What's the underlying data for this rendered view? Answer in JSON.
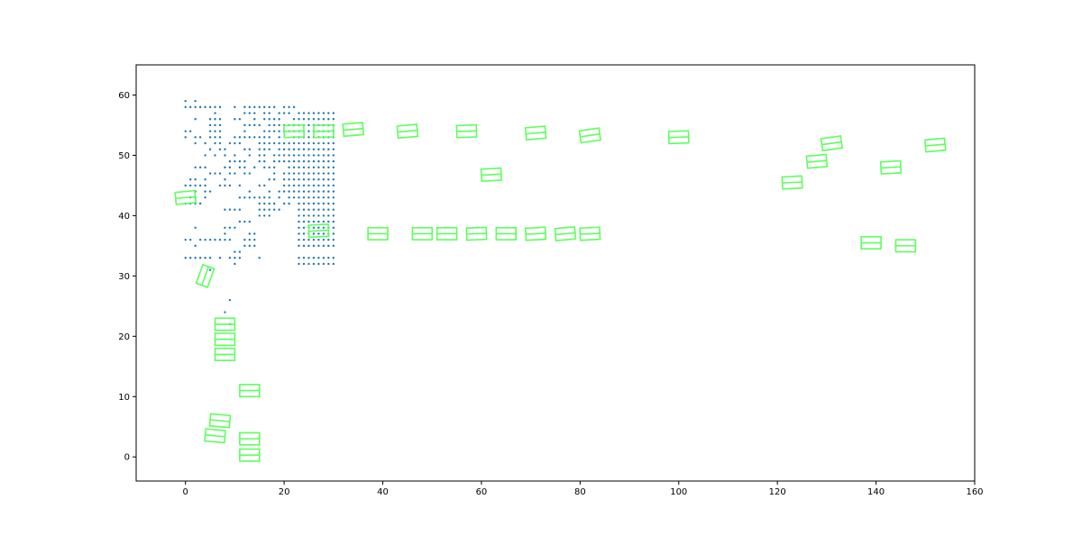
{
  "chart_data": {
    "type": "scatter",
    "title": "",
    "xlabel": "",
    "ylabel": "",
    "xlim": [
      -10,
      160
    ],
    "ylim": [
      -4,
      65
    ],
    "grid": false,
    "legend": "none",
    "x_ticks": [
      0,
      20,
      40,
      60,
      80,
      100,
      120,
      140,
      160
    ],
    "y_ticks": [
      0,
      10,
      20,
      30,
      40,
      50,
      60
    ],
    "colors": {
      "points": "#1f77b4",
      "boxes": "#5dff5d"
    },
    "series": [
      {
        "kind": "points",
        "x": [
          0,
          0,
          0,
          0,
          0,
          0,
          0,
          0,
          1,
          1,
          1,
          1,
          1,
          1,
          1,
          1,
          2,
          2,
          2,
          2,
          2,
          2,
          2,
          2,
          2,
          2,
          2,
          2,
          2,
          2,
          3,
          3,
          3,
          3,
          3,
          3,
          3,
          4,
          4,
          4,
          4,
          4,
          4,
          4,
          4,
          4,
          4,
          5,
          5,
          5,
          5,
          5,
          5,
          5,
          5,
          5,
          5,
          5,
          6,
          6,
          6,
          6,
          6,
          6,
          6,
          6,
          6,
          6,
          7,
          7,
          7,
          7,
          7,
          7,
          7,
          7,
          7,
          7,
          7,
          8,
          8,
          8,
          8,
          8,
          8,
          8,
          8,
          8,
          8,
          9,
          9,
          9,
          9,
          9,
          9,
          9,
          9,
          9,
          9,
          9,
          10,
          10,
          10,
          10,
          10,
          10,
          10,
          10,
          10,
          10,
          10,
          10,
          11,
          11,
          11,
          11,
          11,
          11,
          11,
          11,
          11,
          11,
          11,
          12,
          12,
          12,
          12,
          12,
          12,
          12,
          12,
          12,
          12,
          12,
          12,
          12,
          13,
          13,
          13,
          13,
          13,
          13,
          13,
          13,
          13,
          13,
          13,
          13,
          13,
          14,
          14,
          14,
          14,
          14,
          14,
          14,
          14,
          14,
          14,
          15,
          15,
          15,
          15,
          15,
          15,
          15,
          15,
          15,
          15,
          15,
          15,
          15,
          16,
          16,
          16,
          16,
          16,
          16,
          16,
          16,
          16,
          16,
          16,
          16,
          16,
          16,
          16,
          17,
          17,
          17,
          17,
          17,
          17,
          17,
          17,
          17,
          17,
          17,
          17,
          17,
          17,
          17,
          18,
          18,
          18,
          18,
          18,
          18,
          18,
          18,
          18,
          18,
          18,
          18,
          19,
          19,
          19,
          19,
          19,
          19,
          19,
          19,
          19,
          19,
          19,
          19,
          20,
          20,
          20,
          20,
          20,
          20,
          20,
          20,
          20,
          20,
          20,
          20,
          20,
          21,
          21,
          21,
          21,
          21,
          21,
          21,
          21,
          21,
          21,
          21,
          21,
          21,
          21,
          21,
          22,
          22,
          22,
          22,
          22,
          22,
          22,
          22,
          22,
          22,
          22,
          22,
          22,
          22,
          22,
          23,
          23,
          23,
          23,
          23,
          23,
          23,
          23,
          23,
          23,
          23,
          23,
          23,
          23,
          23,
          23,
          23,
          23,
          23,
          23,
          23,
          23,
          23,
          23,
          23,
          24,
          24,
          24,
          24,
          24,
          24,
          24,
          24,
          24,
          24,
          24,
          24,
          24,
          24,
          24,
          24,
          24,
          24,
          24,
          24,
          24,
          24,
          24,
          24,
          24,
          25,
          25,
          25,
          25,
          25,
          25,
          25,
          25,
          25,
          25,
          25,
          25,
          25,
          25,
          25,
          25,
          25,
          25,
          25,
          25,
          25,
          25,
          25,
          25,
          25,
          26,
          26,
          26,
          26,
          26,
          26,
          26,
          26,
          26,
          26,
          26,
          26,
          26,
          26,
          26,
          26,
          26,
          26,
          26,
          26,
          26,
          26,
          26,
          26,
          26,
          27,
          27,
          27,
          27,
          27,
          27,
          27,
          27,
          27,
          27,
          27,
          27,
          27,
          27,
          27,
          27,
          27,
          27,
          27,
          27,
          27,
          27,
          27,
          27,
          27,
          28,
          28,
          28,
          28,
          28,
          28,
          28,
          28,
          28,
          28,
          28,
          28,
          28,
          28,
          28,
          28,
          28,
          28,
          28,
          28,
          28,
          28,
          28,
          28,
          28,
          29,
          29,
          29,
          29,
          29,
          29,
          29,
          29,
          29,
          29,
          29,
          29,
          29,
          29,
          29,
          29,
          29,
          29,
          29,
          29,
          29,
          29,
          29,
          29,
          29,
          30,
          30,
          30,
          30,
          30,
          30,
          30,
          30,
          30,
          30,
          30,
          30,
          30,
          30,
          30,
          30,
          30,
          30,
          30,
          30,
          30,
          30,
          30,
          30,
          30
        ],
        "y": [
          58,
          59,
          54,
          53,
          45,
          42,
          36,
          33,
          58,
          54,
          46,
          45,
          43,
          42,
          36,
          33,
          59,
          58,
          56,
          53,
          52,
          48,
          46,
          45,
          44,
          43,
          42,
          38,
          35,
          33,
          58,
          53,
          48,
          45,
          42,
          36,
          33,
          58,
          52,
          50,
          48,
          46,
          45,
          44,
          43,
          36,
          33,
          58,
          56,
          55,
          54,
          53,
          51,
          47,
          44,
          36,
          33,
          31,
          58,
          57,
          56,
          55,
          54,
          53,
          52,
          50,
          47,
          36,
          58,
          56,
          55,
          54,
          53,
          52,
          51,
          47,
          45,
          36,
          33,
          51,
          50,
          48,
          46,
          45,
          41,
          38,
          37,
          36,
          24,
          52,
          49,
          48,
          47,
          45,
          41,
          38,
          36,
          33,
          26,
          22,
          58,
          56,
          53,
          52,
          50,
          49,
          47,
          41,
          38,
          34,
          33,
          32,
          56,
          53,
          52,
          49,
          48,
          45,
          43,
          41,
          39,
          34,
          33,
          58,
          57,
          55,
          54,
          53,
          51,
          49,
          48,
          47,
          43,
          39,
          36,
          35,
          58,
          57,
          55,
          53,
          51,
          50,
          47,
          44,
          43,
          39,
          37,
          36,
          35,
          58,
          57,
          56,
          55,
          53,
          48,
          43,
          37,
          36,
          35,
          58,
          55,
          53,
          52,
          51,
          50,
          49,
          45,
          43,
          42,
          41,
          40,
          33,
          58,
          57,
          56,
          54,
          53,
          52,
          51,
          50,
          49,
          48,
          45,
          43,
          42,
          41,
          40,
          58,
          57,
          56,
          55,
          54,
          53,
          52,
          51,
          48,
          46,
          44,
          43,
          42,
          41,
          40,
          58,
          56,
          55,
          54,
          52,
          50,
          49,
          48,
          47,
          46,
          42,
          41,
          57,
          56,
          55,
          54,
          53,
          52,
          51,
          50,
          49,
          44,
          43,
          41,
          58,
          57,
          55,
          54,
          52,
          51,
          50,
          49,
          47,
          46,
          45,
          44,
          42,
          58,
          57,
          55,
          54,
          52,
          51,
          50,
          49,
          48,
          47,
          46,
          45,
          44,
          43,
          42,
          58,
          56,
          55,
          54,
          53,
          52,
          51,
          50,
          49,
          48,
          47,
          46,
          45,
          44,
          43,
          57,
          56,
          55,
          54,
          53,
          52,
          51,
          50,
          49,
          48,
          47,
          46,
          45,
          44,
          43,
          42,
          41,
          40,
          39,
          38,
          37,
          36,
          35,
          33,
          32,
          57,
          56,
          55,
          54,
          53,
          52,
          51,
          50,
          49,
          48,
          47,
          46,
          45,
          44,
          43,
          42,
          41,
          40,
          39,
          38,
          37,
          36,
          35,
          33,
          32,
          57,
          56,
          55,
          54,
          53,
          52,
          51,
          50,
          49,
          48,
          47,
          46,
          45,
          44,
          43,
          42,
          41,
          40,
          39,
          38,
          37,
          36,
          35,
          33,
          32,
          57,
          56,
          55,
          54,
          53,
          52,
          51,
          50,
          49,
          48,
          47,
          46,
          45,
          44,
          43,
          42,
          41,
          40,
          39,
          38,
          37,
          36,
          35,
          33,
          32,
          57,
          56,
          55,
          54,
          53,
          52,
          51,
          50,
          49,
          48,
          47,
          46,
          45,
          44,
          43,
          42,
          41,
          40,
          39,
          38,
          37,
          36,
          35,
          33,
          32,
          57,
          56,
          55,
          54,
          53,
          52,
          51,
          50,
          49,
          48,
          47,
          46,
          45,
          44,
          43,
          42,
          41,
          40,
          39,
          38,
          37,
          36,
          35,
          33,
          32,
          57,
          56,
          55,
          54,
          53,
          52,
          51,
          50,
          49,
          48,
          47,
          46,
          45,
          44,
          43,
          42,
          41,
          40,
          39,
          38,
          37,
          36,
          35,
          33,
          32,
          57,
          56,
          55,
          54,
          53,
          52,
          51,
          50,
          49,
          48,
          47,
          46,
          45,
          44,
          43,
          42,
          41,
          40,
          39,
          38,
          37,
          36,
          35,
          33,
          32
        ]
      },
      {
        "kind": "boxes",
        "width": 4,
        "height": 2,
        "x": [
          0,
          4,
          8,
          8,
          8,
          13,
          7,
          6,
          13,
          13,
          22,
          28,
          34,
          45,
          57,
          62,
          27,
          39,
          48,
          53,
          59,
          65,
          71,
          77,
          82,
          71,
          82,
          100,
          123,
          128,
          131,
          143,
          152,
          139,
          146
        ],
        "y": [
          43,
          30,
          22,
          19.5,
          17,
          11,
          6,
          3.5,
          3,
          0.3,
          54,
          54,
          54.3,
          54,
          54,
          46.8,
          37.5,
          37,
          37,
          37,
          37,
          37,
          37,
          37,
          37,
          53.7,
          53.3,
          53,
          45.5,
          49,
          52,
          48,
          51.7,
          35.5,
          35
        ],
        "angle": [
          -5,
          -70,
          0,
          0,
          0,
          0,
          5,
          5,
          0,
          0,
          -2,
          -2,
          -5,
          -5,
          -2,
          -3,
          -3,
          0,
          0,
          0,
          -2,
          0,
          -3,
          -5,
          -3,
          -5,
          -8,
          -2,
          -3,
          -5,
          -8,
          -3,
          -5,
          0,
          0
        ]
      }
    ]
  }
}
